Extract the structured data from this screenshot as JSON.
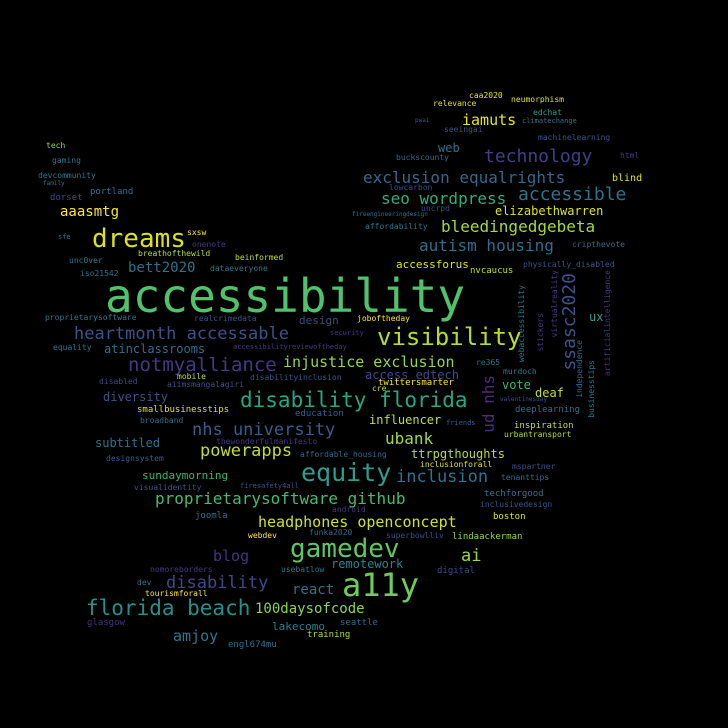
{
  "words": [
    {
      "text": "accessibility",
      "color": "#4fc26b"
    },
    {
      "text": "a11y",
      "color": "#6ccd5a"
    },
    {
      "text": "gamedev",
      "color": "#5dc863"
    },
    {
      "text": "dreams",
      "color": "#dde318"
    },
    {
      "text": "visibility",
      "color": "#b5de2b"
    },
    {
      "text": "equity",
      "color": "#2a9d8f"
    },
    {
      "text": "florida beach",
      "color": "#20928c"
    },
    {
      "text": "disability florida",
      "color": "#22a884"
    },
    {
      "text": "notmyalliance",
      "color": "#443983"
    },
    {
      "text": "technology",
      "color": "#433e85"
    },
    {
      "text": "accessible",
      "color": "#2c728e"
    },
    {
      "text": "heartmonth accessable",
      "color": "#3b528b"
    },
    {
      "text": "inclusion",
      "color": "#2c728e"
    },
    {
      "text": "disability",
      "color": "#3e4989"
    },
    {
      "text": "nhs university",
      "color": "#355f8d"
    },
    {
      "text": "proprietarysoftware github",
      "color": "#40bd72"
    },
    {
      "text": "powerapps",
      "color": "#c2df23"
    },
    {
      "text": "headphones openconcept",
      "color": "#d2e21b"
    },
    {
      "text": "bleedingedgebeta",
      "color": "#a5db36"
    },
    {
      "text": "autism housing",
      "color": "#2e6e8e"
    },
    {
      "text": "seo wordpress",
      "color": "#29af7f"
    },
    {
      "text": "exclusion equalrights",
      "color": "#31688e"
    },
    {
      "text": "injustice exclusion",
      "color": "#90d743"
    },
    {
      "text": "ssasc2020",
      "color": "#3b528b"
    },
    {
      "text": "ud nhs",
      "color": "#472d7b"
    },
    {
      "text": "ubank",
      "color": "#a0da39"
    },
    {
      "text": "iamuts",
      "color": "#e7e419"
    },
    {
      "text": "aaasmtg",
      "color": "#fde725"
    },
    {
      "text": "bett2020",
      "color": "#2c728e"
    },
    {
      "text": "blog",
      "color": "#46327e"
    },
    {
      "text": "ai",
      "color": "#95d840"
    },
    {
      "text": "amjoy",
      "color": "#2a788e"
    },
    {
      "text": "react",
      "color": "#2c728e"
    },
    {
      "text": "100daysofcode",
      "color": "#8bd646"
    },
    {
      "text": "remotework",
      "color": "#25848e"
    },
    {
      "text": "elizabethwarren",
      "color": "#dde318"
    },
    {
      "text": "influencer",
      "color": "#c2df23"
    },
    {
      "text": "access edtech",
      "color": "#3e4989"
    },
    {
      "text": "ttrpgthoughts",
      "color": "#b5de2b"
    },
    {
      "text": "atinclassrooms",
      "color": "#2e6e8e"
    },
    {
      "text": "diversity",
      "color": "#3b528b"
    },
    {
      "text": "subtitled",
      "color": "#2c728e"
    },
    {
      "text": "sundaymorning",
      "color": "#32b67a"
    },
    {
      "text": "lakecomo",
      "color": "#27808e"
    },
    {
      "text": "accessforus",
      "color": "#dde318"
    },
    {
      "text": "deaf",
      "color": "#c2df23"
    },
    {
      "text": "vote",
      "color": "#37b878"
    },
    {
      "text": "web",
      "color": "#2c728e"
    },
    {
      "text": "design",
      "color": "#3e4989"
    },
    {
      "text": "ux",
      "color": "#2a9d8f"
    },
    {
      "text": "tech",
      "color": "#90d743"
    },
    {
      "text": "portland",
      "color": "#2c728e"
    },
    {
      "text": "dorset",
      "color": "#3e4989"
    },
    {
      "text": "seattle",
      "color": "#31688e"
    },
    {
      "text": "boston",
      "color": "#e7e419"
    },
    {
      "text": "digital",
      "color": "#3e4989"
    },
    {
      "text": "blind",
      "color": "#dde318"
    },
    {
      "text": "html",
      "color": "#443983"
    },
    {
      "text": "nvcaucus",
      "color": "#c2df23"
    },
    {
      "text": "inspiration",
      "color": "#c2df23"
    },
    {
      "text": "twittersmarter",
      "color": "#fde725"
    },
    {
      "text": "deeplearning",
      "color": "#2e6e8e"
    },
    {
      "text": "education",
      "color": "#355f8d"
    },
    {
      "text": "urbantransport",
      "color": "#b5de2b"
    },
    {
      "text": "techforgood",
      "color": "#2a788e"
    },
    {
      "text": "inclusivedesign",
      "color": "#3b528b"
    },
    {
      "text": "training",
      "color": "#b5de2b"
    },
    {
      "text": "engl674mu",
      "color": "#2c728e"
    },
    {
      "text": "glasgow",
      "color": "#46327e"
    },
    {
      "text": "tourismforall",
      "color": "#fde725"
    },
    {
      "text": "dev",
      "color": "#2c728e"
    },
    {
      "text": "nomoreborders",
      "color": "#443983"
    },
    {
      "text": "usebatlow",
      "color": "#2a788e"
    },
    {
      "text": "joomla",
      "color": "#2c728e"
    },
    {
      "text": "webdev",
      "color": "#fde725"
    },
    {
      "text": "funka2020",
      "color": "#31688e"
    },
    {
      "text": "superbowlliv",
      "color": "#3e4989"
    },
    {
      "text": "lindaackerman",
      "color": "#90d743"
    },
    {
      "text": "visualidentity",
      "color": "#3b528b"
    },
    {
      "text": "firesafety4all",
      "color": "#3b528b"
    },
    {
      "text": "android",
      "color": "#443983"
    },
    {
      "text": "designsystem",
      "color": "#355f8d"
    },
    {
      "text": "affordable_housing",
      "color": "#31688e"
    },
    {
      "text": "inclusionforall",
      "color": "#dde318"
    },
    {
      "text": "mspartner",
      "color": "#3b528b"
    },
    {
      "text": "tenanttips",
      "color": "#2e6e8e"
    },
    {
      "text": "thewonderfulmanifesto",
      "color": "#443983"
    },
    {
      "text": "friends",
      "color": "#355f8d"
    },
    {
      "text": "broadband",
      "color": "#2e6e8e"
    },
    {
      "text": "smallbusinesstips",
      "color": "#dde318"
    },
    {
      "text": "aiimsmangalagiri",
      "color": "#3b528b"
    },
    {
      "text": "disabled",
      "color": "#3e4989"
    },
    {
      "text": "mobile",
      "color": "#c2df23"
    },
    {
      "text": "disabilityinclusion",
      "color": "#3b528b"
    },
    {
      "text": "equality",
      "color": "#2c728e"
    },
    {
      "text": "accessibilityreviewoftheday",
      "color": "#443983"
    },
    {
      "text": "security",
      "color": "#46327e"
    },
    {
      "text": "joboftheday",
      "color": "#fde725"
    },
    {
      "text": "proprietarysoftware",
      "color": "#2a788e"
    },
    {
      "text": "realcrimedata",
      "color": "#3b528b"
    },
    {
      "text": "re365",
      "color": "#2c728e"
    },
    {
      "text": "murdoch",
      "color": "#2a788e"
    },
    {
      "text": "valentinesday",
      "color": "#3b528b"
    },
    {
      "text": "iso21542",
      "color": "#2c728e"
    },
    {
      "text": "unc0ver",
      "color": "#2a788e"
    },
    {
      "text": "sfe",
      "color": "#2e6e8e"
    },
    {
      "text": "sxsw",
      "color": "#fde725"
    },
    {
      "text": "breathofthewild",
      "color": "#b5de2b"
    },
    {
      "text": "onenote",
      "color": "#443983"
    },
    {
      "text": "beinformed",
      "color": "#c2df23"
    },
    {
      "text": "dataeveryone",
      "color": "#2a788e"
    },
    {
      "text": "physically_disabled",
      "color": "#3b528b"
    },
    {
      "text": "cripthevote",
      "color": "#2e6e8e"
    },
    {
      "text": "affordability",
      "color": "#2a788e"
    },
    {
      "text": "fireengineeringdesign",
      "color": "#2c728e"
    },
    {
      "text": "uncrpd",
      "color": "#3e4989"
    },
    {
      "text": "lowcarbon",
      "color": "#3e4989"
    },
    {
      "text": "buckscounty",
      "color": "#31688e"
    },
    {
      "text": "seeingai",
      "color": "#3b528b"
    },
    {
      "text": "machinelearning",
      "color": "#3b528b"
    },
    {
      "text": "climatechange",
      "color": "#2c728e"
    },
    {
      "text": "edchat",
      "color": "#2a9d8f"
    },
    {
      "text": "neumorphism",
      "color": "#dde318"
    },
    {
      "text": "caa2020",
      "color": "#e7e419"
    },
    {
      "text": "relevance",
      "color": "#dde318"
    },
    {
      "text": "pwai",
      "color": "#3b528b"
    },
    {
      "text": "gaming",
      "color": "#2a788e"
    },
    {
      "text": "devcommunity",
      "color": "#2a788e"
    },
    {
      "text": "family",
      "color": "#2c728e"
    },
    {
      "text": "cre",
      "color": "#c2df23"
    },
    {
      "text": "webaccessibility",
      "color": "#2a788e"
    },
    {
      "text": "stickers",
      "color": "#443983"
    },
    {
      "text": "virtualreality",
      "color": "#443983"
    },
    {
      "text": "independence",
      "color": "#31688e"
    },
    {
      "text": "businesstips",
      "color": "#2a788e"
    },
    {
      "text": "artificialintelligence",
      "color": "#46327e"
    }
  ]
}
